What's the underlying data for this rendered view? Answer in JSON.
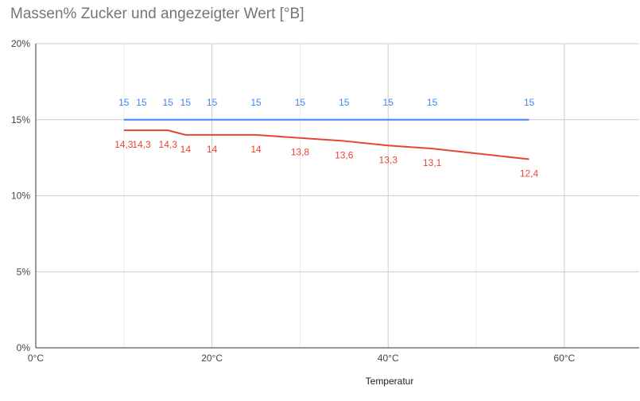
{
  "chart_data": {
    "type": "line",
    "title": "Massen% Zucker und angezeigter Wert [°B]",
    "xlabel": "Temperatur",
    "ylabel": "",
    "x_ticks": [
      "0°C",
      "20°C",
      "40°C",
      "60°C"
    ],
    "y_ticks": [
      "0%",
      "5%",
      "10%",
      "15%",
      "20%"
    ],
    "xlim": [
      0,
      68.5
    ],
    "ylim": [
      0,
      20
    ],
    "series": [
      {
        "color": "#4285f4",
        "x": [
          10,
          12,
          15,
          17,
          20,
          25,
          30,
          35,
          40,
          45,
          56
        ],
        "y": [
          15,
          15,
          15,
          15,
          15,
          15,
          15,
          15,
          15,
          15,
          15
        ],
        "labels": [
          "15",
          "15",
          "15",
          "15",
          "15",
          "15",
          "15",
          "15",
          "15",
          "15",
          "15"
        ]
      },
      {
        "color": "#ea4335",
        "x": [
          10,
          12,
          15,
          17,
          20,
          25,
          30,
          35,
          40,
          45,
          56
        ],
        "y": [
          14.3,
          14.3,
          14.3,
          14,
          14,
          14,
          13.8,
          13.6,
          13.3,
          13.1,
          12.4
        ],
        "labels": [
          "14,3",
          "14,3",
          "14,3",
          "14",
          "14",
          "14",
          "13,8",
          "13,6",
          "13,3",
          "13,1",
          "12,4"
        ]
      }
    ]
  }
}
